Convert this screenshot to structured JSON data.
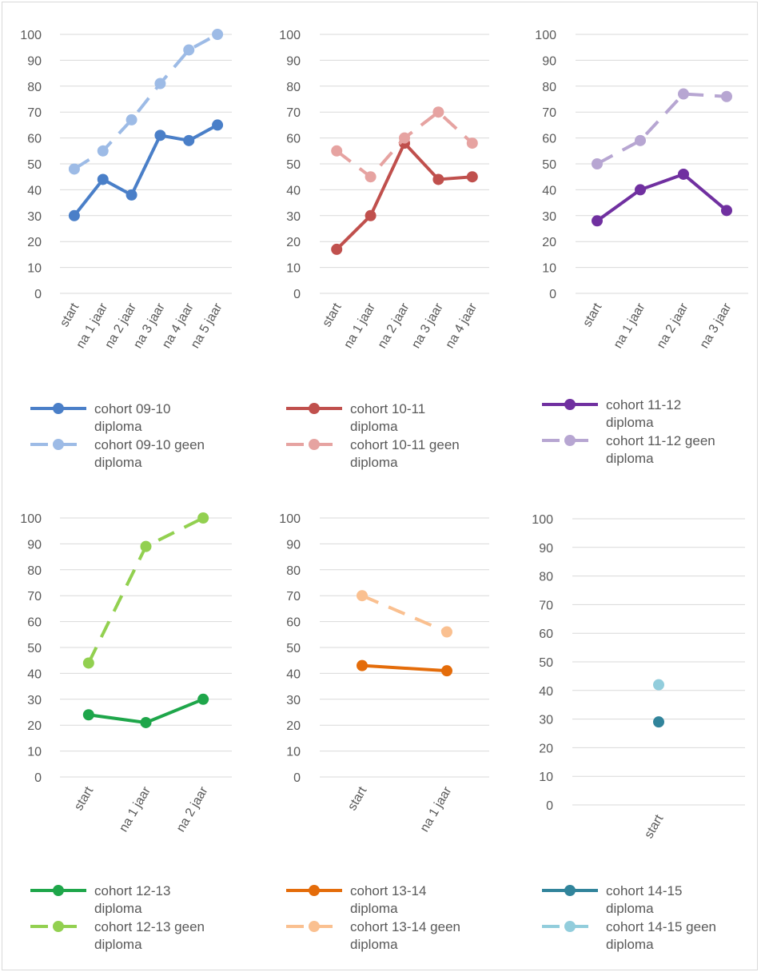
{
  "chart_data": [
    {
      "type": "line",
      "categories": [
        "start",
        "na 1 jaar",
        "na 2 jaar",
        "na 3 jaar",
        "na 4 jaar",
        "na 5 jaar"
      ],
      "ylim": [
        0,
        100
      ],
      "yticks": [
        0,
        10,
        20,
        30,
        40,
        50,
        60,
        70,
        80,
        90,
        100
      ],
      "grid": true,
      "legend": "bottom",
      "series": [
        {
          "name": "cohort 09-10 diploma",
          "legend_lines": [
            "cohort 09-10",
            "diploma"
          ],
          "values": [
            30,
            44,
            38,
            61,
            59,
            65
          ],
          "color": "#4a7fc8",
          "dashed": false
        },
        {
          "name": "cohort 09-10 geen diploma",
          "legend_lines": [
            "cohort 09-10 geen",
            "diploma"
          ],
          "values": [
            48,
            55,
            67,
            81,
            94,
            100
          ],
          "color": "#9dbbe6",
          "dashed": true
        }
      ]
    },
    {
      "type": "line",
      "categories": [
        "start",
        "na 1 jaar",
        "na 2 jaar",
        "na 3 jaar",
        "na 4 jaar"
      ],
      "ylim": [
        0,
        100
      ],
      "yticks": [
        0,
        10,
        20,
        30,
        40,
        50,
        60,
        70,
        80,
        90,
        100
      ],
      "grid": true,
      "legend": "bottom",
      "series": [
        {
          "name": "cohort 10-11 diploma",
          "legend_lines": [
            "cohort 10-11",
            "diploma"
          ],
          "values": [
            17,
            30,
            58,
            44,
            45
          ],
          "color": "#c0504d",
          "dashed": false
        },
        {
          "name": "cohort 10-11 geen diploma",
          "legend_lines": [
            "cohort 10-11 geen",
            "diploma"
          ],
          "values": [
            55,
            45,
            60,
            70,
            58
          ],
          "color": "#e6a3a1",
          "dashed": true
        }
      ]
    },
    {
      "type": "line",
      "categories": [
        "start",
        "na 1 jaar",
        "na 2 jaar",
        "na 3 jaar"
      ],
      "ylim": [
        0,
        100
      ],
      "yticks": [
        0,
        10,
        20,
        30,
        40,
        50,
        60,
        70,
        80,
        90,
        100
      ],
      "grid": true,
      "legend": "bottom",
      "series": [
        {
          "name": "cohort 11-12 diploma",
          "legend_lines": [
            "cohort 11-12",
            "diploma"
          ],
          "values": [
            28,
            40,
            46,
            32
          ],
          "color": "#7030a0",
          "dashed": false
        },
        {
          "name": "cohort 11-12 geen diploma",
          "legend_lines": [
            "cohort 11-12 geen",
            "diploma"
          ],
          "values": [
            50,
            59,
            77,
            76
          ],
          "color": "#b7a6d2",
          "dashed": true
        }
      ]
    },
    {
      "type": "line",
      "categories": [
        "start",
        "na 1 jaar",
        "na 2 jaar"
      ],
      "ylim": [
        0,
        100
      ],
      "yticks": [
        0,
        10,
        20,
        30,
        40,
        50,
        60,
        70,
        80,
        90,
        100
      ],
      "grid": true,
      "legend": "bottom",
      "series": [
        {
          "name": "cohort 12-13 diploma",
          "legend_lines": [
            "cohort 12-13",
            "diploma"
          ],
          "values": [
            24,
            21,
            30
          ],
          "color": "#1ea64a",
          "dashed": false
        },
        {
          "name": "cohort 12-13 geen diploma",
          "legend_lines": [
            "cohort 12-13 geen",
            "diploma"
          ],
          "values": [
            44,
            89,
            100
          ],
          "color": "#92d050",
          "dashed": true
        }
      ]
    },
    {
      "type": "line",
      "categories": [
        "start",
        "na 1 jaar"
      ],
      "ylim": [
        0,
        100
      ],
      "yticks": [
        0,
        10,
        20,
        30,
        40,
        50,
        60,
        70,
        80,
        90,
        100
      ],
      "grid": true,
      "legend": "bottom",
      "series": [
        {
          "name": "cohort 13-14 diploma",
          "legend_lines": [
            "cohort 13-14",
            "diploma"
          ],
          "values": [
            43,
            41
          ],
          "color": "#e46c0a",
          "dashed": false
        },
        {
          "name": "cohort 13-14 geen diploma",
          "legend_lines": [
            "cohort 13-14 geen",
            "diploma"
          ],
          "values": [
            70,
            56
          ],
          "color": "#fac090",
          "dashed": true
        }
      ]
    },
    {
      "type": "line",
      "categories": [
        "start"
      ],
      "ylim": [
        0,
        100
      ],
      "yticks": [
        0,
        10,
        20,
        30,
        40,
        50,
        60,
        70,
        80,
        90,
        100
      ],
      "grid": true,
      "legend": "bottom",
      "series": [
        {
          "name": "cohort 14-15 diploma",
          "legend_lines": [
            "cohort 14-15",
            "diploma"
          ],
          "values": [
            29
          ],
          "color": "#31849b",
          "dashed": false
        },
        {
          "name": "cohort 14-15 geen diploma",
          "legend_lines": [
            "cohort 14-15 geen",
            "diploma"
          ],
          "values": [
            42
          ],
          "color": "#92cddc",
          "dashed": true
        }
      ]
    }
  ]
}
